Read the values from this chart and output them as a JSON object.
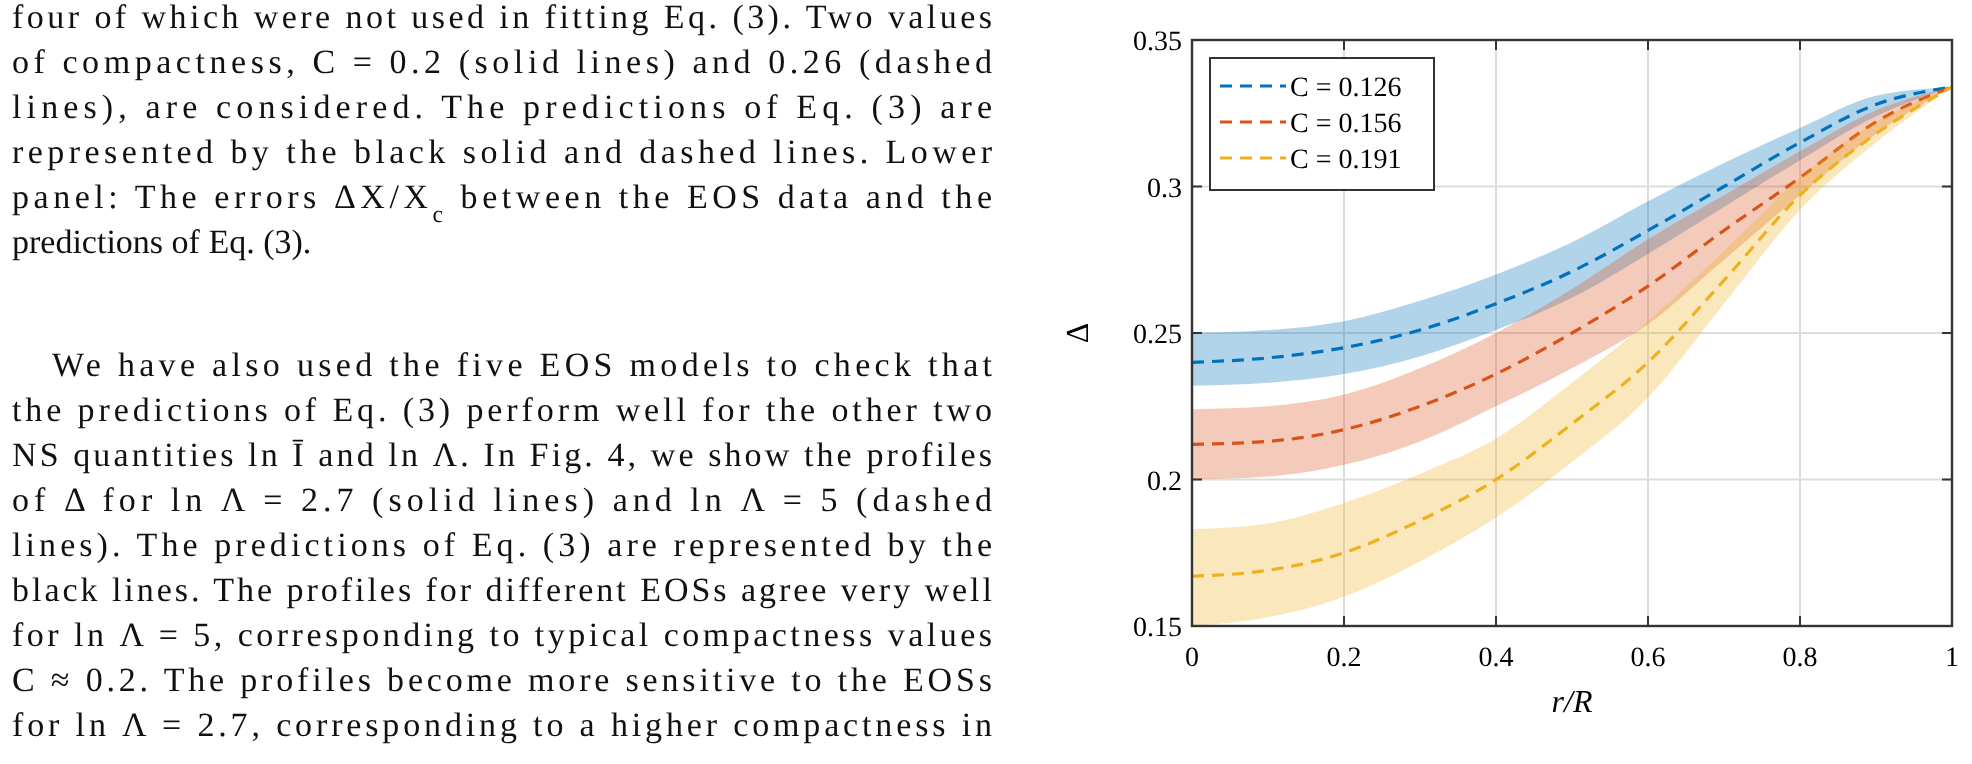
{
  "chart_data": {
    "type": "line",
    "xlabel": "r/R",
    "ylabel": "Δ",
    "x": [
      0,
      0.1,
      0.2,
      0.3,
      0.4,
      0.5,
      0.6,
      0.7,
      0.8,
      0.9,
      1
    ],
    "series": [
      {
        "name": "C = 0.126",
        "color": "#0072bd",
        "values": [
          0.24,
          0.2415,
          0.245,
          0.251,
          0.26,
          0.271,
          0.285,
          0.3,
          0.315,
          0.328,
          0.334
        ],
        "lower": [
          0.232,
          0.233,
          0.236,
          0.242,
          0.251,
          0.262,
          0.277,
          0.293,
          0.309,
          0.324,
          0.334
        ],
        "upper": [
          0.25,
          0.251,
          0.254,
          0.261,
          0.27,
          0.281,
          0.295,
          0.308,
          0.32,
          0.331,
          0.334
        ]
      },
      {
        "name": "C = 0.156",
        "color": "#d95319",
        "values": [
          0.212,
          0.213,
          0.217,
          0.225,
          0.236,
          0.25,
          0.266,
          0.285,
          0.303,
          0.322,
          0.334
        ],
        "lower": [
          0.2,
          0.201,
          0.205,
          0.213,
          0.225,
          0.238,
          0.253,
          0.275,
          0.297,
          0.318,
          0.334
        ],
        "upper": [
          0.224,
          0.225,
          0.229,
          0.238,
          0.25,
          0.265,
          0.282,
          0.297,
          0.312,
          0.326,
          0.334
        ]
      },
      {
        "name": "C = 0.191",
        "color": "#edb120",
        "values": [
          0.167,
          0.169,
          0.175,
          0.186,
          0.2,
          0.219,
          0.24,
          0.268,
          0.297,
          0.318,
          0.334
        ],
        "lower": [
          0.15,
          0.153,
          0.16,
          0.172,
          0.187,
          0.206,
          0.228,
          0.26,
          0.292,
          0.315,
          0.334
        ],
        "upper": [
          0.183,
          0.185,
          0.192,
          0.202,
          0.214,
          0.233,
          0.254,
          0.278,
          0.303,
          0.322,
          0.334
        ]
      }
    ],
    "xlim": [
      0,
      1
    ],
    "ylim": [
      0.15,
      0.35
    ],
    "xticks": [
      0,
      0.2,
      0.4,
      0.6,
      0.8,
      1
    ],
    "yticks": [
      0.15,
      0.2,
      0.25,
      0.3,
      0.35
    ],
    "grid": true,
    "legend": "top left",
    "line_style": "dashed",
    "marker": "none",
    "annotations": [
      "four of which were not used in fitting Eq. (3). Two values",
      "of compactness, C = 0.2 (solid lines) and 0.26 (dashed",
      "lines), are considered.  The predictions of Eq. (3) are",
      "represented by the black solid and dashed lines. Lower",
      "panel: The errors ΔX/X$_{c}$ between the EOS data and the",
      "predictions of Eq. (3).",
      "We have also used the five EOS models to check that",
      "the predictions of Eq. (3) perform well for the other two",
      "NS quantities ln Ī and ln Λ. In Fig. 4, we show the profiles",
      "of Δ for ln Λ = 2.7 (solid lines) and ln Λ = 5 (dashed",
      "lines). The predictions of Eq. (3) are represented by the",
      "black lines. The profiles for different EOSs agree very well",
      "for ln Λ = 5, corresponding to typical compactness values",
      "C ≈ 0.2. The profiles become more sensitive to the EOSs",
      "for ln Λ = 2.7, corresponding to a higher compactness in"
    ]
  }
}
